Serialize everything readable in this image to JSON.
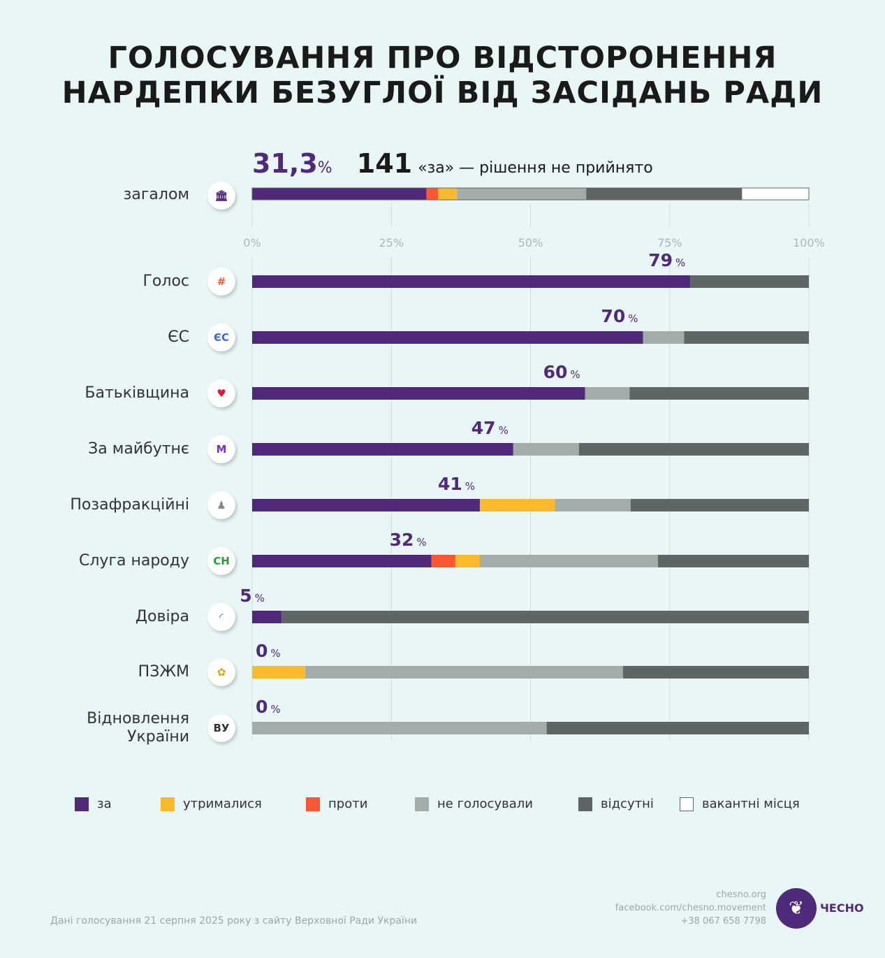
{
  "title": [
    "ГОЛОСУВАННЯ ПРО ВІДСТОРОНЕННЯ",
    "НАРДЕПКИ БЕЗУГЛОЇ ВІД ЗАСІДАНЬ РАДИ"
  ],
  "summary": {
    "percent": "31,3",
    "percent_unit": "%",
    "count": "141",
    "text": "«за» — рішення не прийнято"
  },
  "colors": {
    "za": "#4f2a7a",
    "utrymalysia": "#fbb92c",
    "proty": "#fd5632",
    "ne_holosuvaly": "#a2aca8",
    "vidsutni": "#5f6564",
    "vakantni": "#ffffff"
  },
  "chart_data": {
    "type": "bar",
    "orientation": "horizontal-stacked",
    "xlim": [
      0,
      100
    ],
    "xticks": [
      "0%",
      "25%",
      "50%",
      "75%",
      "100%"
    ],
    "series_keys": [
      "za",
      "proty",
      "utrymalysia",
      "ne_holosuvaly",
      "vidsutni",
      "vakantni"
    ],
    "overall": {
      "label": "загалом",
      "icon": "parliament-icon",
      "values": {
        "za": 31.3,
        "proty": 2.1,
        "utrymalysia": 3.4,
        "ne_holosuvaly": 23.2,
        "vidsutni": 28.0,
        "vakantni": 12.0
      }
    },
    "rows": [
      {
        "label": "Голос",
        "icon": "holos-logo-icon",
        "icon_text": "#",
        "pct_label": "79",
        "values": {
          "za": 78.7,
          "vidsutni": 21.3
        }
      },
      {
        "label": "ЄС",
        "icon": "es-logo-icon",
        "icon_text": "ЄС",
        "pct_label": "70",
        "values": {
          "za": 70.2,
          "ne_holosuvaly": 7.4,
          "vidsutni": 22.4
        }
      },
      {
        "label": "Батьківщина",
        "icon": "heart-icon",
        "icon_text": "♥",
        "pct_label": "60",
        "values": {
          "za": 59.8,
          "ne_holosuvaly": 8.0,
          "vidsutni": 32.2
        }
      },
      {
        "label": "За майбутнє",
        "icon": "za-maibutnie-logo-icon",
        "icon_text": "M",
        "pct_label": "47",
        "values": {
          "za": 46.9,
          "ne_holosuvaly": 11.8,
          "vidsutni": 41.3
        }
      },
      {
        "label": "Позафракційні",
        "icon": "person-icon",
        "icon_text": "♟",
        "pct_label": "41",
        "values": {
          "za": 40.9,
          "utrymalysia": 13.5,
          "ne_holosuvaly": 13.6,
          "vidsutni": 32.0
        }
      },
      {
        "label": "Слуга народу",
        "icon": "sluha-logo-icon",
        "icon_text": "СН",
        "pct_label": "32",
        "values": {
          "za": 32.2,
          "proty": 4.3,
          "utrymalysia": 4.4,
          "ne_holosuvaly": 32.0,
          "vidsutni": 27.1
        }
      },
      {
        "label": "Довіра",
        "icon": "dovira-logo-icon",
        "icon_text": "◜",
        "pct_label": "5",
        "values": {
          "za": 5.3,
          "vidsutni": 94.7
        }
      },
      {
        "label": "ПЗЖМ",
        "icon": "sunflower-icon",
        "icon_text": "✿",
        "pct_label": "0",
        "values": {
          "utrymalysia": 9.5,
          "ne_holosuvaly": 57.1,
          "vidsutni": 33.4
        }
      },
      {
        "label": "Відновлення\nУкраїни",
        "icon": "vu-logo-icon",
        "icon_text": "ВУ",
        "pct_label": "0",
        "values": {
          "ne_holosuvaly": 52.9,
          "vidsutni": 47.1
        }
      }
    ],
    "legend": [
      {
        "key": "za",
        "label": "за"
      },
      {
        "key": "utrymalysia",
        "label": "утрималися"
      },
      {
        "key": "proty",
        "label": "проти"
      },
      {
        "key": "ne_holosuvaly",
        "label": "не голосували"
      },
      {
        "key": "vidsutni",
        "label": "відсутні"
      },
      {
        "key": "vakantni",
        "label": "вакантні місця"
      }
    ],
    "pct_unit": "%"
  },
  "footer": {
    "source": "Дані голосування 21 серпня 2025 року з сайту Верховної Ради України",
    "contacts": [
      "chesno.org",
      "facebook.com/chesno.movement",
      "+38 067 658 7798"
    ],
    "logo": "ЧЕСНО"
  }
}
